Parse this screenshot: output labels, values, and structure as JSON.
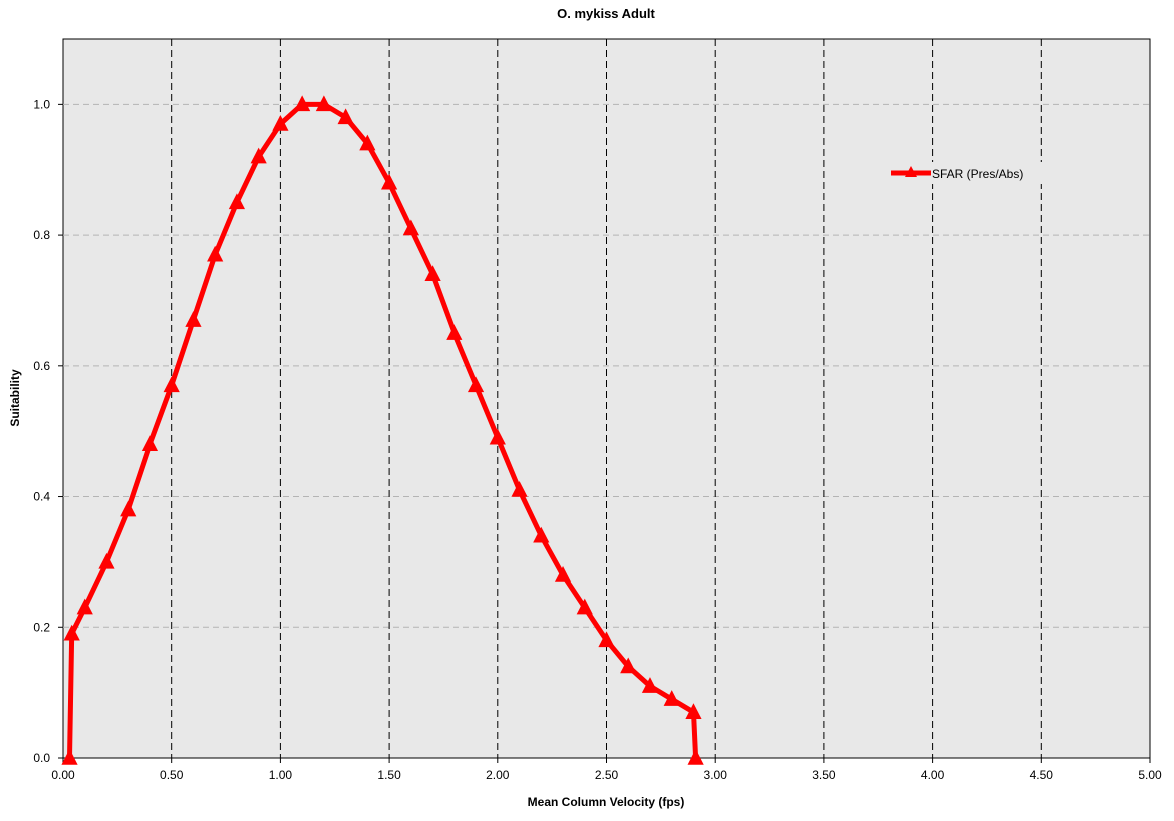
{
  "chart_data": {
    "type": "line",
    "title": "O. mykiss  Adult",
    "xlabel": "Mean Column Velocity (fps)",
    "ylabel": "Suitability",
    "xlim": [
      0,
      5
    ],
    "ylim": [
      0,
      1.1
    ],
    "x_ticks": [
      "0.00",
      "0.50",
      "1.00",
      "1.50",
      "2.00",
      "2.50",
      "3.00",
      "3.50",
      "4.00",
      "4.50",
      "5.00"
    ],
    "x_tick_values": [
      0,
      0.5,
      1,
      1.5,
      2,
      2.5,
      3,
      3.5,
      4,
      4.5,
      5
    ],
    "y_ticks": [
      "0.0",
      "0.2",
      "0.4",
      "0.6",
      "0.8",
      "1.0"
    ],
    "y_tick_values": [
      0,
      0.2,
      0.4,
      0.6,
      0.8,
      1.0
    ],
    "grid": true,
    "legend_position": "top-right",
    "plot_background": "#e8e8e8",
    "series": [
      {
        "name": "SFAR (Pres/Abs)",
        "color": "#ff0000",
        "marker": "triangle",
        "x": [
          0.03,
          0.04,
          0.1,
          0.2,
          0.3,
          0.4,
          0.5,
          0.6,
          0.7,
          0.8,
          0.9,
          1.0,
          1.1,
          1.2,
          1.3,
          1.4,
          1.5,
          1.6,
          1.7,
          1.8,
          1.9,
          2.0,
          2.1,
          2.2,
          2.3,
          2.4,
          2.5,
          2.6,
          2.7,
          2.8,
          2.9,
          2.91
        ],
        "y": [
          0.0,
          0.19,
          0.23,
          0.3,
          0.38,
          0.48,
          0.57,
          0.67,
          0.77,
          0.85,
          0.92,
          0.97,
          1.0,
          1.0,
          0.98,
          0.94,
          0.88,
          0.81,
          0.74,
          0.65,
          0.57,
          0.49,
          0.41,
          0.34,
          0.28,
          0.23,
          0.18,
          0.14,
          0.11,
          0.09,
          0.07,
          0.0
        ]
      }
    ]
  }
}
